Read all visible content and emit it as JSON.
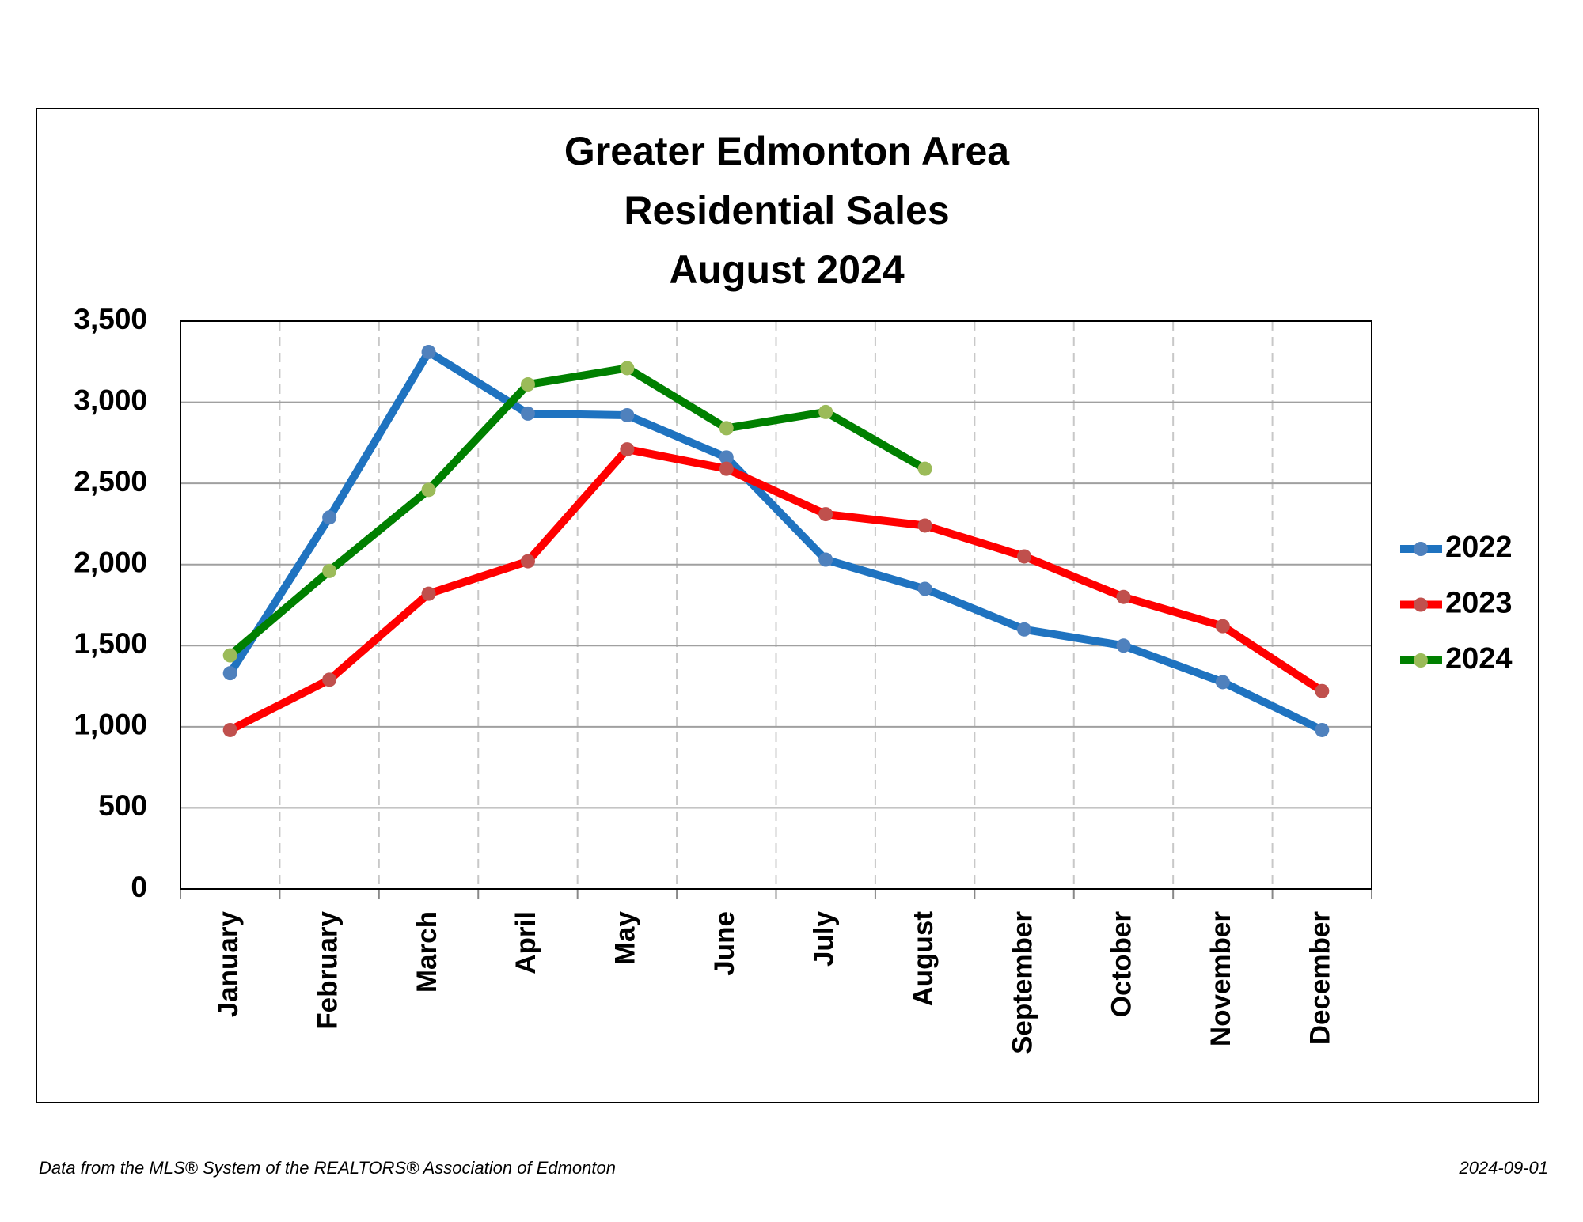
{
  "chart_data": {
    "type": "line",
    "title": [
      "Greater Edmonton Area",
      "Residential Sales",
      "August 2024"
    ],
    "categories": [
      "January",
      "February",
      "March",
      "April",
      "May",
      "June",
      "July",
      "August",
      "September",
      "October",
      "November",
      "December"
    ],
    "series": [
      {
        "name": "2022",
        "color": "#1f73c0",
        "marker_color": "#4f81bd",
        "values": [
          1330,
          2290,
          3310,
          2930,
          2920,
          2660,
          2030,
          1850,
          1600,
          1500,
          1275,
          980
        ]
      },
      {
        "name": "2023",
        "color": "#ff0000",
        "marker_color": "#c0504d",
        "values": [
          980,
          1290,
          1820,
          2020,
          2710,
          2590,
          2310,
          2240,
          2050,
          1800,
          1620,
          1220
        ]
      },
      {
        "name": "2024",
        "color": "#008000",
        "marker_color": "#9bbb59",
        "values": [
          1440,
          1960,
          2460,
          3110,
          3210,
          2840,
          2940,
          2590,
          null,
          null,
          null,
          null
        ]
      }
    ],
    "ylim": [
      0,
      3500
    ],
    "yticks": [
      0,
      500,
      {
        "value": 1000,
        "label": "1,000"
      },
      {
        "value": 1500,
        "label": "1,500"
      },
      {
        "value": 2000,
        "label": "2,000"
      },
      {
        "value": 2500,
        "label": "2,500"
      },
      {
        "value": 3000,
        "label": "3,000"
      },
      {
        "value": 3500,
        "label": "3,500"
      }
    ],
    "grid": true,
    "legend": "right",
    "footnote": "Data from the MLS® System of the REALTORS® Association of Edmonton",
    "date": "2024-09-01"
  }
}
